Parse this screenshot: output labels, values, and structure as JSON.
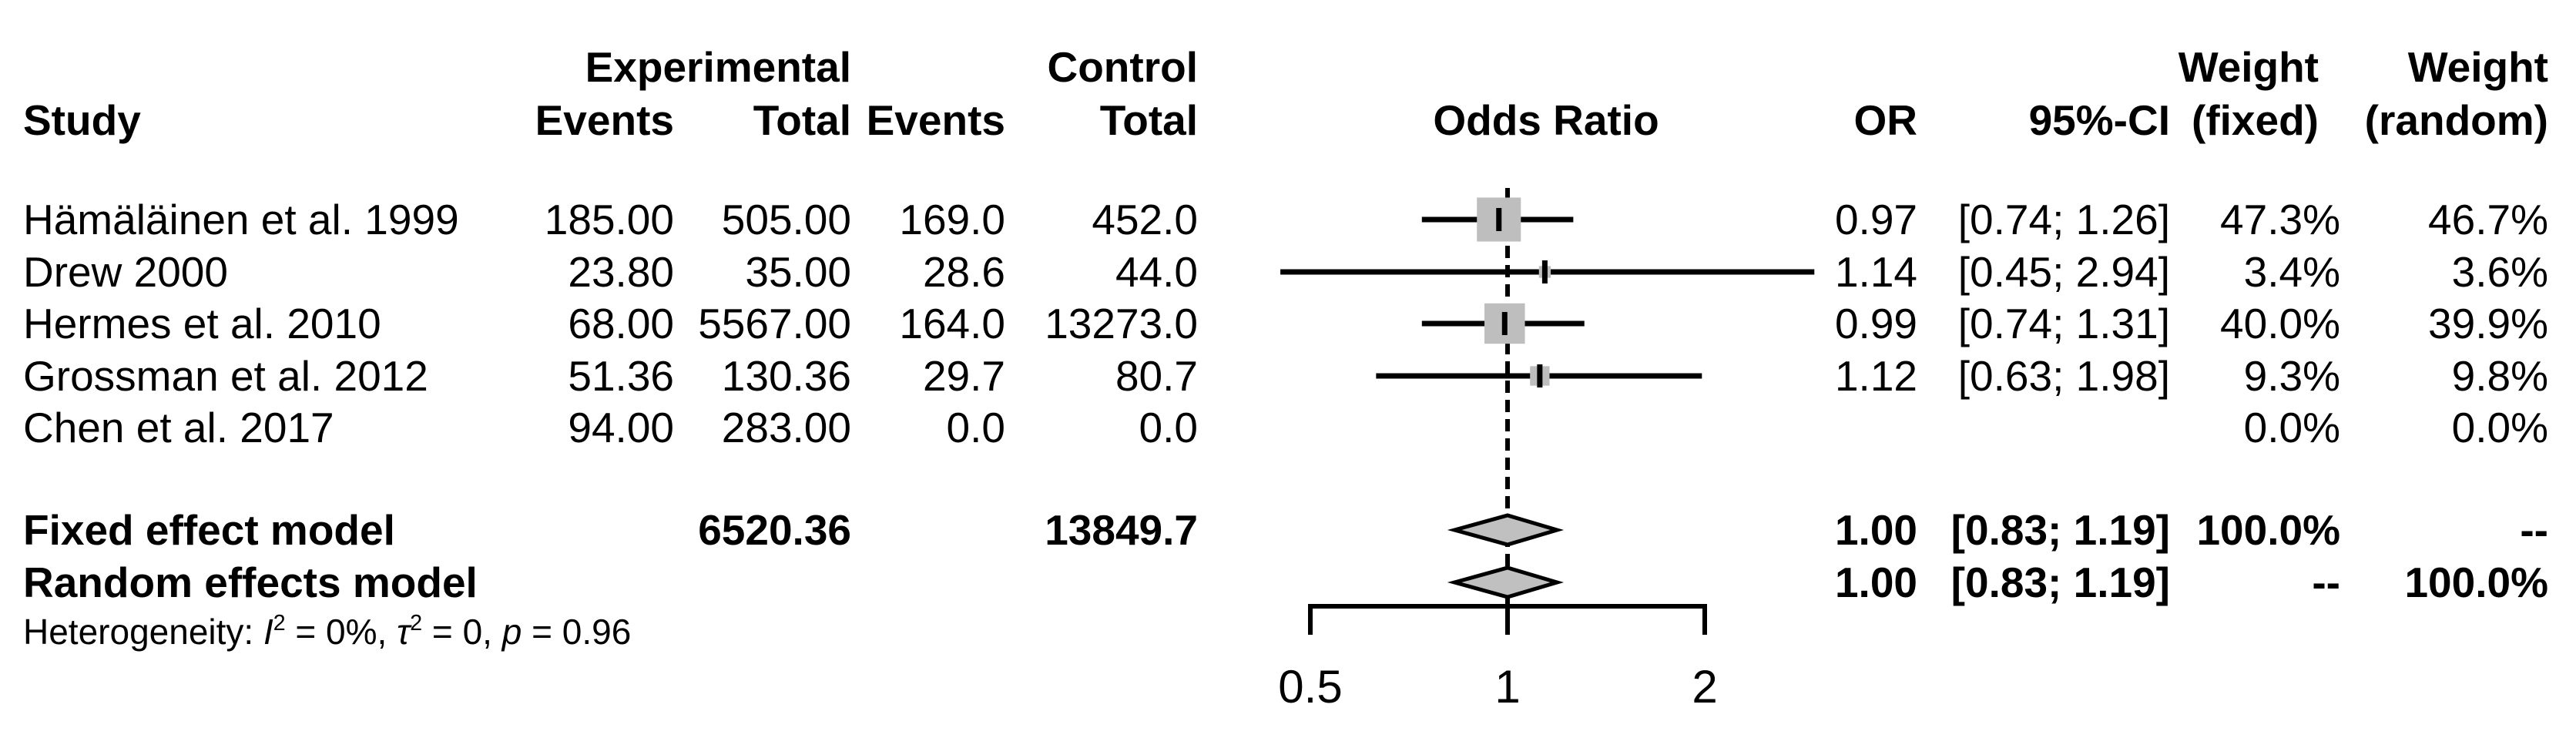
{
  "colors": {
    "background": "#ffffff",
    "text": "#000000",
    "marker_fill": "#bebebe",
    "diamond_fill": "#c0c0c0",
    "line": "#000000"
  },
  "header": {
    "row1": {
      "experimental": "Experimental",
      "control": "Control",
      "weight_fixed_top": "Weight",
      "weight_random_top": "Weight"
    },
    "row2": {
      "study": "Study",
      "events1": "Events",
      "total1": "Total",
      "events2": "Events",
      "total2": "Total",
      "odds_ratio": "Odds Ratio",
      "or": "OR",
      "ci": "95%-CI",
      "fixed": "(fixed)",
      "random": "(random)"
    }
  },
  "rows": [
    {
      "study": "Hämäläinen et al. 1999",
      "events1": "185.00",
      "total1": "505.00",
      "events2": "169.0",
      "total2": "452.0",
      "or": "0.97",
      "ci": "[0.74; 1.26]",
      "wf": "47.3%",
      "wr": "46.7%"
    },
    {
      "study": "Drew 2000",
      "events1": "23.80",
      "total1": "35.00",
      "events2": "28.6",
      "total2": "44.0",
      "or": "1.14",
      "ci": "[0.45; 2.94]",
      "wf": "3.4%",
      "wr": "3.6%"
    },
    {
      "study": "Hermes et al. 2010",
      "events1": "68.00",
      "total1": "5567.00",
      "events2": "164.0",
      "total2": "13273.0",
      "or": "0.99",
      "ci": "[0.74; 1.31]",
      "wf": "40.0%",
      "wr": "39.9%"
    },
    {
      "study": "Grossman et al. 2012",
      "events1": "51.36",
      "total1": "130.36",
      "events2": "29.7",
      "total2": "80.7",
      "or": "1.12",
      "ci": "[0.63; 1.98]",
      "wf": "9.3%",
      "wr": "9.8%"
    },
    {
      "study": "Chen et al. 2017",
      "events1": "94.00",
      "total1": "283.00",
      "events2": "0.0",
      "total2": "0.0",
      "or": "",
      "ci": "",
      "wf": "0.0%",
      "wr": "0.0%"
    }
  ],
  "summary": [
    {
      "study": "Fixed effect model",
      "total1": "6520.36",
      "total2": "13849.7",
      "or": "1.00",
      "ci": "[0.83; 1.19]",
      "wf": "100.0%",
      "wr": "--"
    },
    {
      "study": "Random effects model",
      "total1": "",
      "total2": "",
      "or": "1.00",
      "ci": "[0.83; 1.19]",
      "wf": "--",
      "wr": "100.0%"
    }
  ],
  "heterogeneity": {
    "prefix": "Heterogeneity: ",
    "i_stat": "I",
    "i_sup": "2",
    "mid1": " = 0%, ",
    "tau": "τ",
    "tau_sup": "2",
    "mid2": " = 0, ",
    "p": "p",
    "end": " = 0.96"
  },
  "chart_data": {
    "type": "forest",
    "x_scale": "log",
    "x_ticks": [
      0.5,
      1,
      2
    ],
    "x_tick_labels": [
      "0.5",
      "1",
      "2"
    ],
    "ref_line": 1,
    "axis_range": [
      0.5,
      2
    ],
    "effect_measure": "Odds Ratio",
    "studies": [
      {
        "label": "Hämäläinen et al. 1999",
        "or": 0.97,
        "ci_low": 0.74,
        "ci_high": 1.26,
        "weight_fixed_pct": 47.3,
        "weight_random_pct": 46.7
      },
      {
        "label": "Drew 2000",
        "or": 1.14,
        "ci_low": 0.45,
        "ci_high": 2.94,
        "weight_fixed_pct": 3.4,
        "weight_random_pct": 3.6
      },
      {
        "label": "Hermes et al. 2010",
        "or": 0.99,
        "ci_low": 0.74,
        "ci_high": 1.31,
        "weight_fixed_pct": 40.0,
        "weight_random_pct": 39.9
      },
      {
        "label": "Grossman et al. 2012",
        "or": 1.12,
        "ci_low": 0.63,
        "ci_high": 1.98,
        "weight_fixed_pct": 9.3,
        "weight_random_pct": 9.8
      },
      {
        "label": "Chen et al. 2017",
        "or": null,
        "ci_low": null,
        "ci_high": null,
        "weight_fixed_pct": 0.0,
        "weight_random_pct": 0.0
      }
    ],
    "summaries": [
      {
        "label": "Fixed effect model",
        "or": 1.0,
        "ci_low": 0.83,
        "ci_high": 1.19
      },
      {
        "label": "Random effects model",
        "or": 1.0,
        "ci_low": 0.83,
        "ci_high": 1.19
      }
    ],
    "heterogeneity": {
      "I2": "0%",
      "tau2": "0",
      "p": "0.96"
    }
  }
}
